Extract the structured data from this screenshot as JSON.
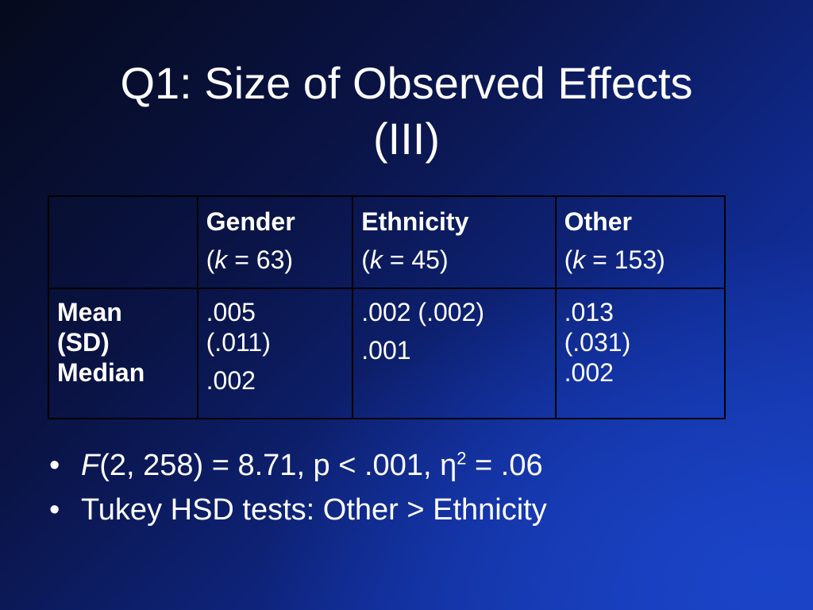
{
  "title": {
    "line1": "Q1: Size of Observed Effects",
    "line2": "(III)"
  },
  "table": {
    "header": {
      "empty": "",
      "columns": [
        {
          "name": "Gender",
          "k_open": "(",
          "k_var": "k",
          "k_rest": " = 63)"
        },
        {
          "name": "Ethnicity",
          "k_open": "(",
          "k_var": "k",
          "k_rest": " = 45)"
        },
        {
          "name": "Other",
          "k_open": "(",
          "k_var": "k",
          "k_rest": " = 153)"
        }
      ]
    },
    "row_label": [
      "Mean",
      "(SD)",
      "Median"
    ],
    "cells": [
      {
        "lines": [
          ".005",
          "(.011)"
        ],
        "median": ".002"
      },
      {
        "lines": [
          ".002 (.002)"
        ],
        "median": ".001"
      },
      {
        "lines": [
          ".013",
          "(.031)",
          ".002"
        ],
        "median": ""
      }
    ]
  },
  "bullets": {
    "marker": "•",
    "item1": {
      "f": "F",
      "rest": "(2, 258) = 8.71, p < .001, η",
      "sup": "2",
      "tail": " = .06"
    },
    "item2": "Tukey HSD tests: Other > Ethnicity"
  }
}
